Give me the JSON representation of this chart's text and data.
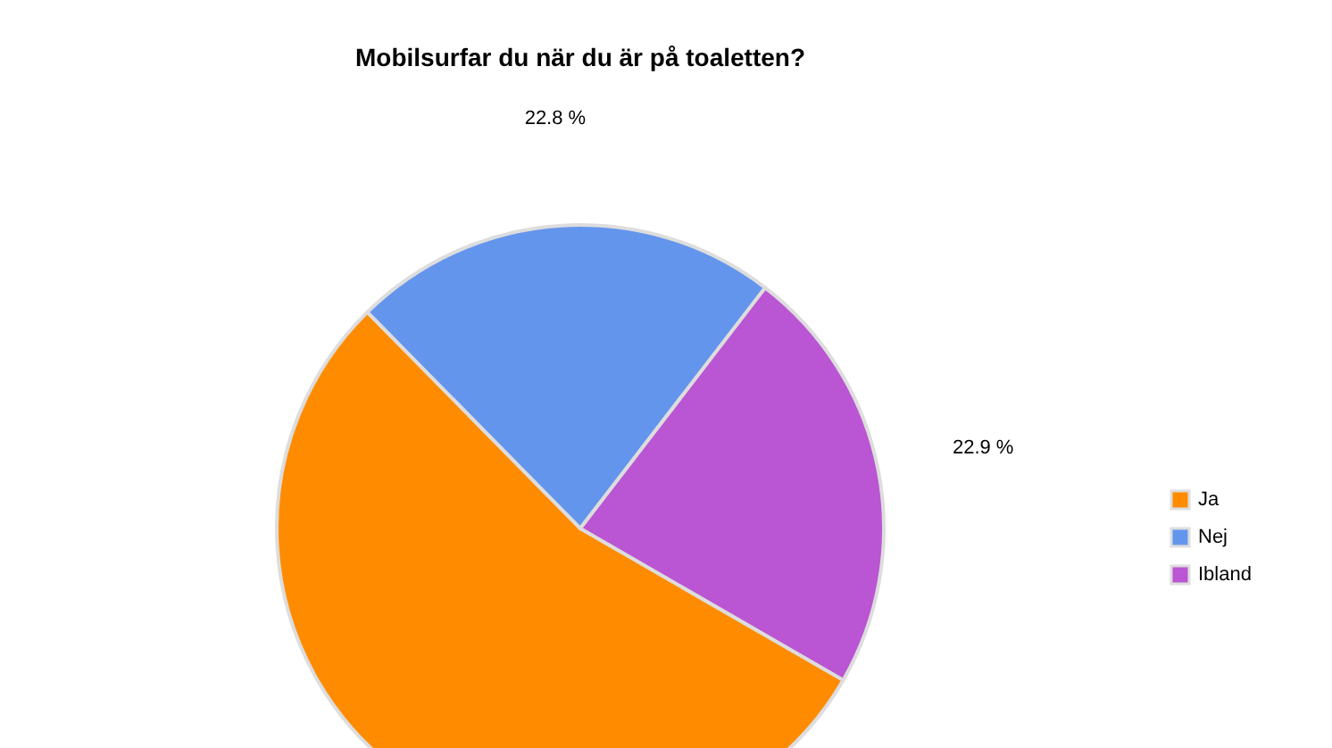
{
  "chart_data": {
    "type": "pie",
    "title": "Mobilsurfar du när du är på toaletten?",
    "categories": [
      "Ja",
      "Nej",
      "Ibland"
    ],
    "values": [
      54.3,
      22.8,
      22.9
    ],
    "colors": [
      "#ff8c00",
      "#6495ed",
      "#ba55d3"
    ],
    "value_labels": [
      null,
      "22.8 %",
      "22.9 %"
    ],
    "legend": "right"
  }
}
